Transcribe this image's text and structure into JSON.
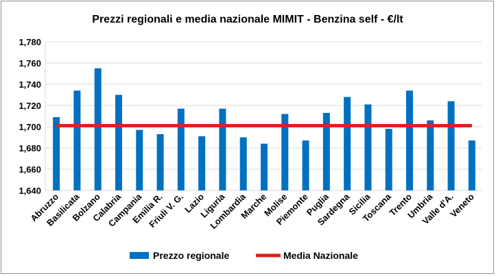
{
  "chart_data": {
    "type": "bar",
    "title": "Prezzi regionali e media nazionale MIMIT - Benzina self - €/lt",
    "categories": [
      "Abruzzo",
      "Basilicata",
      "Bolzano",
      "Calabria",
      "Campania",
      "Emilia R.",
      "Friuli V. G.",
      "Lazio",
      "Liguria",
      "Lombardia",
      "Marche",
      "Molise",
      "Piemonte",
      "Puglia",
      "Sardegna",
      "Sicilia",
      "Toscana",
      "Trento",
      "Umbria",
      "Valle d'A.",
      "Veneto"
    ],
    "series": [
      {
        "name": "Prezzo regionale",
        "type": "bar",
        "color": "#0070c0",
        "values": [
          1.709,
          1.734,
          1.755,
          1.73,
          1.697,
          1.693,
          1.717,
          1.691,
          1.717,
          1.69,
          1.684,
          1.712,
          1.687,
          1.713,
          1.728,
          1.721,
          1.698,
          1.734,
          1.706,
          1.724,
          1.687
        ]
      },
      {
        "name": "Media Nazionale",
        "type": "line",
        "color": "#e02020",
        "value": 1.701
      }
    ],
    "ylim": [
      1.64,
      1.78
    ],
    "yticks": [
      "1,640",
      "1,660",
      "1,680",
      "1,700",
      "1,720",
      "1,740",
      "1,760",
      "1,780"
    ],
    "ytick_values": [
      1.64,
      1.66,
      1.68,
      1.7,
      1.72,
      1.74,
      1.76,
      1.78
    ],
    "grid": true,
    "legend_position": "bottom",
    "xlabel": "",
    "ylabel": ""
  }
}
